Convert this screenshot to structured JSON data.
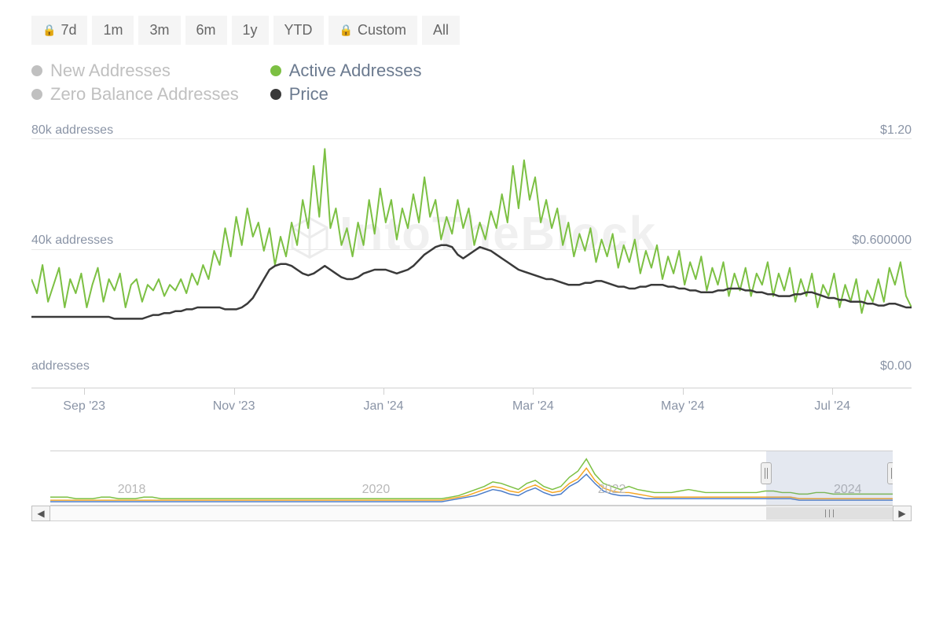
{
  "range_buttons": [
    {
      "label": "7d",
      "locked": true
    },
    {
      "label": "1m",
      "locked": false
    },
    {
      "label": "3m",
      "locked": false
    },
    {
      "label": "6m",
      "locked": false
    },
    {
      "label": "1y",
      "locked": false
    },
    {
      "label": "YTD",
      "locked": false
    },
    {
      "label": "Custom",
      "locked": true
    },
    {
      "label": "All",
      "locked": false
    }
  ],
  "legend": {
    "new_addresses": {
      "label": "New Addresses",
      "color": "#c0c0c0",
      "enabled": false
    },
    "zero_balance": {
      "label": "Zero Balance Addresses",
      "color": "#c0c0c0",
      "enabled": false
    },
    "active_addresses": {
      "label": "Active Addresses",
      "color": "#7cc043",
      "enabled": true
    },
    "price": {
      "label": "Price",
      "color": "#3a3a3a",
      "enabled": true
    }
  },
  "chart": {
    "type": "line",
    "background_color": "#ffffff",
    "grid_color": "#e8e8e8",
    "axis_label_color": "#8a94a6",
    "axis_label_fontsize": 16,
    "left_axis": {
      "ticks": [
        {
          "value": 0,
          "label": "addresses"
        },
        {
          "value": 40000,
          "label": "40k addresses"
        },
        {
          "value": 80000,
          "label": "80k addresses"
        }
      ],
      "min": 0,
      "max": 80000
    },
    "right_axis": {
      "ticks": [
        {
          "value": 0,
          "label": "$0.00"
        },
        {
          "value": 0.6,
          "label": "$0.600000"
        },
        {
          "value": 1.2,
          "label": "$1.20"
        }
      ],
      "min": 0,
      "max": 1.2
    },
    "x_axis": {
      "labels": [
        "Sep '23",
        "Nov '23",
        "Jan '24",
        "Mar '24",
        "May '24",
        "Jul '24"
      ],
      "positions_pct": [
        6,
        23,
        40,
        57,
        74,
        91
      ]
    },
    "series": {
      "active_addresses": {
        "color": "#7cc043",
        "line_width": 2,
        "values": [
          30,
          25,
          35,
          22,
          28,
          34,
          20,
          30,
          25,
          32,
          20,
          28,
          34,
          22,
          30,
          26,
          32,
          20,
          28,
          30,
          22,
          28,
          26,
          30,
          24,
          28,
          26,
          30,
          25,
          32,
          28,
          35,
          30,
          40,
          35,
          48,
          38,
          52,
          42,
          55,
          45,
          50,
          40,
          48,
          35,
          45,
          38,
          50,
          42,
          58,
          48,
          70,
          52,
          76,
          48,
          55,
          42,
          48,
          38,
          50,
          42,
          58,
          46,
          62,
          50,
          58,
          44,
          55,
          48,
          60,
          50,
          66,
          52,
          58,
          44,
          52,
          46,
          58,
          48,
          55,
          42,
          50,
          44,
          54,
          48,
          60,
          50,
          70,
          55,
          72,
          58,
          66,
          50,
          58,
          48,
          55,
          42,
          50,
          38,
          46,
          40,
          48,
          36,
          44,
          38,
          46,
          34,
          42,
          36,
          44,
          32,
          40,
          34,
          42,
          30,
          38,
          32,
          40,
          28,
          36,
          30,
          38,
          26,
          34,
          28,
          36,
          24,
          32,
          26,
          34,
          24,
          32,
          28,
          36,
          24,
          32,
          26,
          34,
          22,
          30,
          24,
          32,
          20,
          28,
          24,
          32,
          20,
          28,
          22,
          30,
          18,
          26,
          22,
          30,
          22,
          34,
          28,
          36,
          24,
          20
        ]
      },
      "price": {
        "color": "#3a3a3a",
        "line_width": 2.5,
        "values": [
          0.25,
          0.25,
          0.25,
          0.25,
          0.25,
          0.25,
          0.25,
          0.25,
          0.25,
          0.25,
          0.25,
          0.25,
          0.25,
          0.25,
          0.25,
          0.24,
          0.24,
          0.24,
          0.24,
          0.24,
          0.24,
          0.25,
          0.26,
          0.26,
          0.27,
          0.27,
          0.28,
          0.28,
          0.29,
          0.29,
          0.3,
          0.3,
          0.3,
          0.3,
          0.3,
          0.29,
          0.29,
          0.29,
          0.3,
          0.32,
          0.35,
          0.4,
          0.45,
          0.5,
          0.52,
          0.53,
          0.53,
          0.52,
          0.5,
          0.48,
          0.47,
          0.48,
          0.5,
          0.52,
          0.5,
          0.48,
          0.46,
          0.45,
          0.45,
          0.46,
          0.48,
          0.49,
          0.5,
          0.5,
          0.5,
          0.49,
          0.48,
          0.49,
          0.5,
          0.52,
          0.55,
          0.58,
          0.6,
          0.62,
          0.63,
          0.63,
          0.62,
          0.58,
          0.56,
          0.58,
          0.6,
          0.62,
          0.61,
          0.6,
          0.58,
          0.56,
          0.54,
          0.52,
          0.5,
          0.49,
          0.48,
          0.47,
          0.46,
          0.45,
          0.45,
          0.44,
          0.43,
          0.42,
          0.42,
          0.42,
          0.43,
          0.43,
          0.44,
          0.44,
          0.43,
          0.42,
          0.41,
          0.41,
          0.4,
          0.4,
          0.41,
          0.41,
          0.42,
          0.42,
          0.42,
          0.41,
          0.41,
          0.4,
          0.4,
          0.39,
          0.39,
          0.38,
          0.38,
          0.38,
          0.39,
          0.39,
          0.4,
          0.4,
          0.4,
          0.39,
          0.39,
          0.38,
          0.38,
          0.37,
          0.37,
          0.36,
          0.36,
          0.36,
          0.37,
          0.37,
          0.38,
          0.38,
          0.37,
          0.36,
          0.35,
          0.35,
          0.34,
          0.34,
          0.33,
          0.33,
          0.33,
          0.32,
          0.32,
          0.31,
          0.31,
          0.32,
          0.32,
          0.31,
          0.3,
          0.3
        ]
      }
    },
    "watermark": "IntoTheBlock"
  },
  "navigator": {
    "years": [
      {
        "label": "2018",
        "pos_pct": 8
      },
      {
        "label": "2020",
        "pos_pct": 37
      },
      {
        "label": "2022",
        "pos_pct": 65
      },
      {
        "label": "2024",
        "pos_pct": 93
      }
    ],
    "selection": {
      "left_pct": 85,
      "right_pct": 100
    },
    "series": {
      "green": {
        "color": "#7cc043",
        "values": [
          5,
          5,
          5,
          4,
          4,
          4,
          5,
          5,
          4,
          4,
          4,
          5,
          5,
          4,
          4,
          4,
          4,
          4,
          4,
          4,
          4,
          4,
          4,
          4,
          4,
          4,
          4,
          4,
          4,
          4,
          4,
          4,
          4,
          4,
          4,
          4,
          4,
          4,
          4,
          4,
          4,
          4,
          4,
          4,
          4,
          4,
          4,
          5,
          6,
          8,
          10,
          12,
          15,
          14,
          12,
          10,
          14,
          16,
          12,
          10,
          12,
          18,
          22,
          30,
          20,
          14,
          12,
          10,
          12,
          10,
          9,
          8,
          8,
          8,
          9,
          10,
          9,
          8,
          8,
          8,
          8,
          8,
          8,
          8,
          9,
          9,
          8,
          8,
          7,
          7,
          8,
          8,
          7,
          7,
          7,
          7,
          7,
          7,
          7,
          7
        ]
      },
      "orange": {
        "color": "#f5a623",
        "values": [
          3,
          3,
          3,
          3,
          3,
          3,
          3,
          3,
          3,
          3,
          3,
          3,
          3,
          3,
          3,
          3,
          3,
          3,
          3,
          3,
          3,
          3,
          3,
          3,
          3,
          3,
          3,
          3,
          3,
          3,
          3,
          3,
          3,
          3,
          3,
          3,
          3,
          3,
          3,
          3,
          3,
          3,
          3,
          3,
          3,
          3,
          3,
          4,
          5,
          6,
          8,
          10,
          12,
          11,
          9,
          8,
          11,
          13,
          10,
          8,
          9,
          14,
          17,
          24,
          16,
          11,
          9,
          8,
          8,
          7,
          6,
          5,
          5,
          5,
          5,
          5,
          5,
          5,
          5,
          5,
          5,
          5,
          5,
          5,
          5,
          5,
          5,
          5,
          4,
          4,
          4,
          4,
          4,
          4,
          4,
          4,
          4,
          4,
          4,
          4
        ]
      },
      "blue": {
        "color": "#4a7bc8",
        "values": [
          2,
          2,
          2,
          2,
          2,
          2,
          2,
          2,
          2,
          2,
          2,
          2,
          2,
          2,
          2,
          2,
          2,
          2,
          2,
          2,
          2,
          2,
          2,
          2,
          2,
          2,
          2,
          2,
          2,
          2,
          2,
          2,
          2,
          2,
          2,
          2,
          2,
          2,
          2,
          2,
          2,
          2,
          2,
          2,
          2,
          2,
          2,
          3,
          4,
          5,
          6,
          8,
          10,
          9,
          7,
          6,
          9,
          11,
          8,
          6,
          7,
          12,
          15,
          20,
          14,
          9,
          7,
          6,
          6,
          5,
          4,
          4,
          4,
          4,
          4,
          4,
          4,
          4,
          4,
          4,
          4,
          4,
          4,
          4,
          4,
          4,
          4,
          4,
          3,
          3,
          3,
          3,
          3,
          3,
          3,
          3,
          3,
          3,
          3,
          3
        ]
      }
    }
  }
}
